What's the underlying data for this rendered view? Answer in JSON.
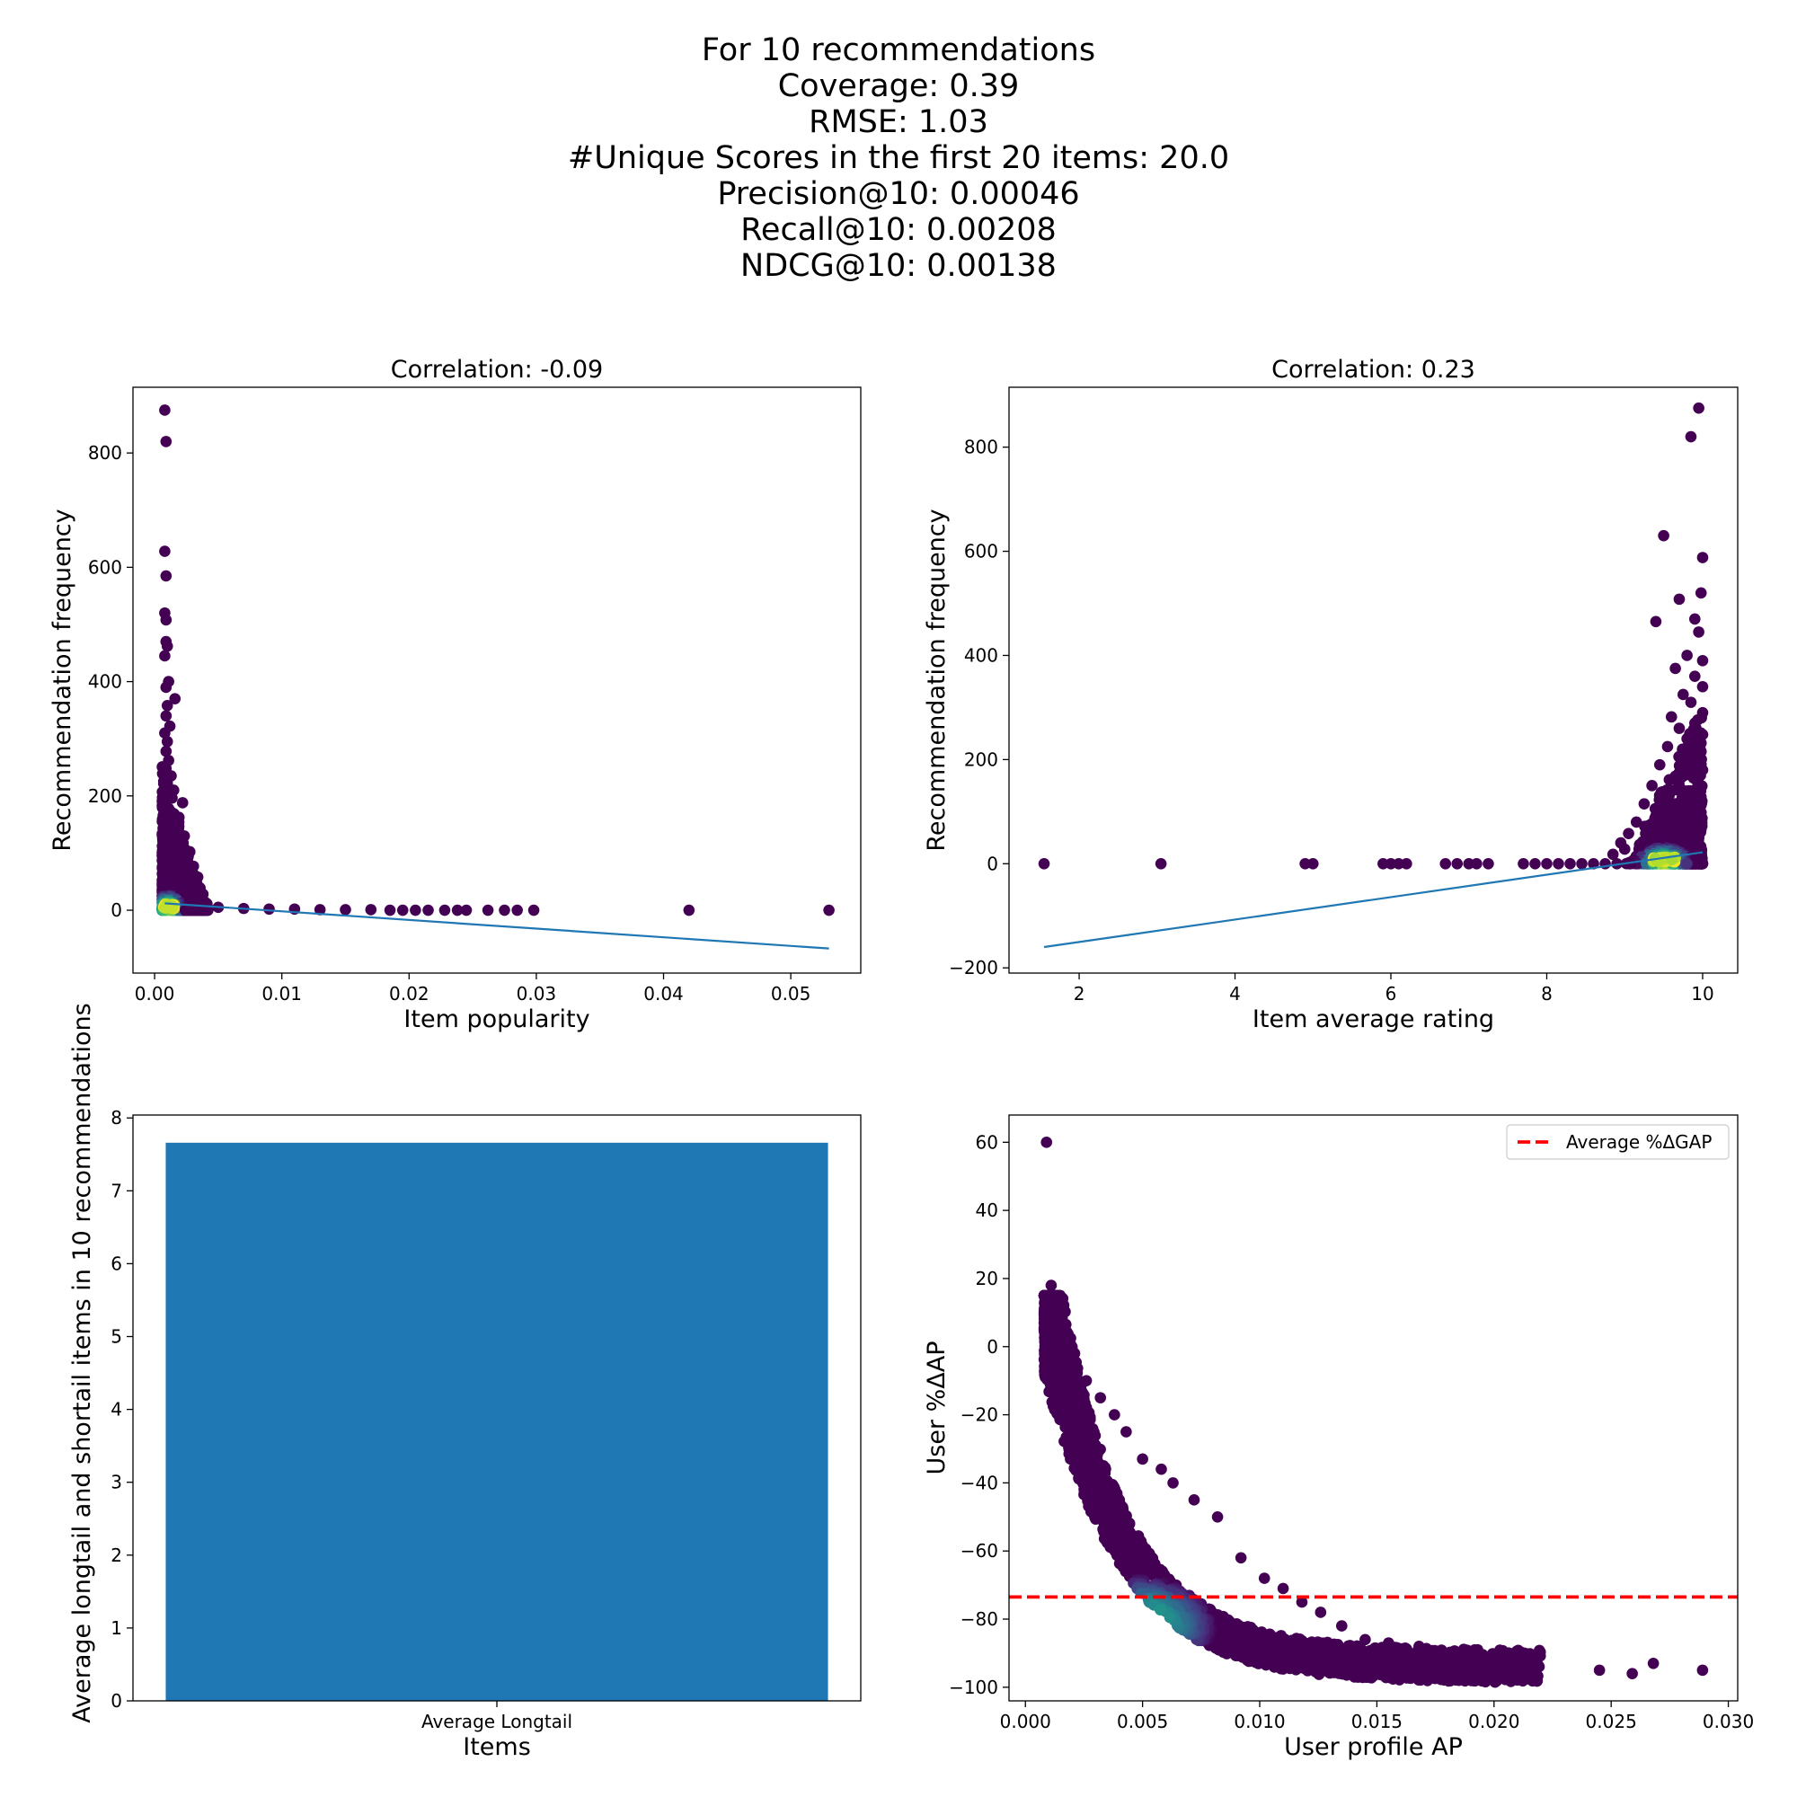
{
  "suptitle": [
    "For 10 recommendations",
    "Coverage: 0.39",
    "RMSE: 1.03",
    "#Unique Scores in the first 20 items: 20.0",
    "Precision@10: 0.00046",
    "Recall@10: 0.00208",
    "NDCG@10: 0.00138"
  ],
  "colors": {
    "viridis_low": "#440154",
    "viridis_mid": "#21918c",
    "viridis_high": "#fde725",
    "fit_line": "#1f77b4",
    "bar": "#1f77b4",
    "avg_line": "#ff0000"
  },
  "chart_data": [
    {
      "type": "scatter",
      "title": "Correlation: -0.09",
      "xlabel": "Item popularity",
      "ylabel": "Recommendation frequency",
      "xlim": [
        -0.0017,
        0.0555
      ],
      "ylim": [
        -110,
        915
      ],
      "xticks": [
        0.0,
        0.01,
        0.02,
        0.03,
        0.04,
        0.05
      ],
      "xticklabels": [
        "0.00",
        "0.01",
        "0.02",
        "0.03",
        "0.04",
        "0.05"
      ],
      "yticks": [
        0,
        200,
        400,
        600,
        800
      ],
      "yticklabels": [
        "0",
        "200",
        "400",
        "600",
        "800"
      ],
      "points": [
        [
          0.0008,
          875
        ],
        [
          0.0009,
          820
        ],
        [
          0.0008,
          628
        ],
        [
          0.0009,
          585
        ],
        [
          0.0008,
          520
        ],
        [
          0.0009,
          508
        ],
        [
          0.0009,
          470
        ],
        [
          0.001,
          462
        ],
        [
          0.0008,
          445
        ],
        [
          0.0011,
          400
        ],
        [
          0.0009,
          390
        ],
        [
          0.0016,
          370
        ],
        [
          0.001,
          358
        ],
        [
          0.0009,
          340
        ],
        [
          0.0012,
          322
        ],
        [
          0.0008,
          310
        ],
        [
          0.001,
          295
        ],
        [
          0.0009,
          278
        ],
        [
          0.0011,
          262
        ],
        [
          0.0009,
          248
        ],
        [
          0.0013,
          235
        ],
        [
          0.001,
          222
        ],
        [
          0.0015,
          210
        ],
        [
          0.0012,
          198
        ],
        [
          0.0022,
          188
        ],
        [
          0.0011,
          178
        ],
        [
          0.0014,
          165
        ],
        [
          0.001,
          152
        ],
        [
          0.0018,
          140
        ],
        [
          0.0012,
          128
        ],
        [
          0.0016,
          118
        ],
        [
          0.0013,
          108
        ],
        [
          0.0019,
          100
        ],
        [
          0.0021,
          95
        ],
        [
          0.0011,
          90
        ],
        [
          0.0025,
          85
        ],
        [
          0.0024,
          78
        ],
        [
          0.0028,
          72
        ],
        [
          0.0015,
          68
        ],
        [
          0.0031,
          62
        ],
        [
          0.0026,
          55
        ],
        [
          0.0033,
          48
        ],
        [
          0.0035,
          40
        ],
        [
          0.0028,
          35
        ],
        [
          0.0038,
          28
        ],
        [
          0.0032,
          22
        ],
        [
          0.0036,
          15
        ],
        [
          0.005,
          5
        ],
        [
          0.007,
          3
        ],
        [
          0.009,
          2
        ],
        [
          0.011,
          2
        ],
        [
          0.013,
          1
        ],
        [
          0.015,
          1
        ],
        [
          0.017,
          1
        ],
        [
          0.0185,
          0
        ],
        [
          0.0195,
          0
        ],
        [
          0.0205,
          0
        ],
        [
          0.0215,
          0
        ],
        [
          0.0228,
          0
        ],
        [
          0.0238,
          0
        ],
        [
          0.0245,
          0
        ],
        [
          0.0262,
          0
        ],
        [
          0.0275,
          0
        ],
        [
          0.0285,
          0
        ],
        [
          0.0298,
          0
        ],
        [
          0.042,
          0
        ],
        [
          0.053,
          0
        ]
      ],
      "dense_region": {
        "x": [
          0.0006,
          0.0042
        ],
        "y": [
          0,
          260
        ],
        "peak": [
          0.0011,
          3
        ]
      },
      "fit_line": [
        [
          0.0008,
          12
        ],
        [
          0.053,
          -67
        ]
      ]
    },
    {
      "type": "scatter",
      "title": "Correlation: 0.23",
      "xlabel": "Item average rating",
      "ylabel": "Recommendation frequency",
      "xlim": [
        1.1,
        10.45
      ],
      "ylim": [
        -210,
        915
      ],
      "xticks": [
        2,
        4,
        6,
        8,
        10
      ],
      "xticklabels": [
        "2",
        "4",
        "6",
        "8",
        "10"
      ],
      "yticks": [
        -200,
        0,
        200,
        400,
        600,
        800
      ],
      "yticklabels": [
        "−200",
        "0",
        "200",
        "400",
        "600",
        "800"
      ],
      "points": [
        [
          1.55,
          0
        ],
        [
          3.05,
          0
        ],
        [
          4.9,
          0
        ],
        [
          5.0,
          0
        ],
        [
          5.9,
          0
        ],
        [
          6.0,
          0
        ],
        [
          6.1,
          0
        ],
        [
          6.2,
          0
        ],
        [
          6.7,
          0
        ],
        [
          6.85,
          0
        ],
        [
          7.0,
          0
        ],
        [
          7.1,
          0
        ],
        [
          7.25,
          0
        ],
        [
          7.7,
          0
        ],
        [
          7.85,
          0
        ],
        [
          8.0,
          0
        ],
        [
          8.15,
          0
        ],
        [
          8.3,
          0
        ],
        [
          8.45,
          0
        ],
        [
          8.6,
          0
        ],
        [
          8.75,
          0
        ],
        [
          8.9,
          0
        ],
        [
          9.95,
          875
        ],
        [
          9.85,
          820
        ],
        [
          9.5,
          630
        ],
        [
          10.0,
          588
        ],
        [
          9.98,
          520
        ],
        [
          9.7,
          508
        ],
        [
          9.9,
          470
        ],
        [
          9.4,
          465
        ],
        [
          9.95,
          445
        ],
        [
          9.8,
          400
        ],
        [
          10.0,
          390
        ],
        [
          9.65,
          375
        ],
        [
          9.9,
          360
        ],
        [
          10.0,
          340
        ],
        [
          9.75,
          325
        ],
        [
          9.85,
          310
        ],
        [
          10.0,
          290
        ],
        [
          9.6,
          282
        ],
        [
          9.9,
          270
        ],
        [
          9.7,
          260
        ],
        [
          10.0,
          248
        ],
        [
          9.8,
          240
        ],
        [
          9.55,
          225
        ],
        [
          9.95,
          210
        ],
        [
          9.9,
          198
        ],
        [
          9.45,
          190
        ],
        [
          10.0,
          180
        ],
        [
          9.65,
          168
        ],
        [
          9.35,
          150
        ],
        [
          9.85,
          140
        ],
        [
          9.5,
          128
        ],
        [
          9.25,
          115
        ],
        [
          9.75,
          100
        ],
        [
          9.4,
          92
        ],
        [
          9.15,
          80
        ],
        [
          9.6,
          72
        ],
        [
          9.05,
          58
        ],
        [
          9.3,
          48
        ],
        [
          8.95,
          40
        ],
        [
          9.7,
          62
        ],
        [
          9.2,
          35
        ],
        [
          9.0,
          28
        ],
        [
          8.85,
          18
        ]
      ],
      "dense_region": {
        "x": [
          9.0,
          10.0
        ],
        "y": [
          0,
          300
        ],
        "peak": [
          9.5,
          3
        ]
      },
      "fit_line": [
        [
          1.55,
          -160
        ],
        [
          10.0,
          22
        ]
      ]
    },
    {
      "type": "bar",
      "title": "",
      "xlabel": "Items",
      "ylabel": "Average longtail and shortail items in 10 recommendations",
      "categories": [
        "Average Longtail"
      ],
      "values": [
        7.66
      ],
      "ylim": [
        0,
        8.04
      ],
      "yticks": [
        0,
        1,
        2,
        3,
        4,
        5,
        6,
        7,
        8
      ],
      "yticklabels": [
        "0",
        "1",
        "2",
        "3",
        "4",
        "5",
        "6",
        "7",
        "8"
      ]
    },
    {
      "type": "scatter",
      "title": "",
      "xlabel": "User profile AP",
      "ylabel": "User %ΔAP",
      "xlim": [
        -0.0007,
        0.0304
      ],
      "ylim": [
        -104,
        68
      ],
      "xticks": [
        0.0,
        0.005,
        0.01,
        0.015,
        0.02,
        0.025,
        0.03
      ],
      "xticklabels": [
        "0.000",
        "0.005",
        "0.010",
        "0.015",
        "0.020",
        "0.025",
        "0.030"
      ],
      "yticks": [
        -100,
        -80,
        -60,
        -40,
        -20,
        0,
        20,
        40,
        60
      ],
      "yticklabels": [
        "−100",
        "−80",
        "−60",
        "−40",
        "−20",
        "0",
        "20",
        "40",
        "60"
      ],
      "legend": {
        "label": "Average %ΔGAP",
        "loc": "upper right"
      },
      "avg_line_y": -73.5,
      "points": [
        [
          0.0009,
          60
        ],
        [
          0.0011,
          18
        ],
        [
          0.0013,
          13
        ],
        [
          0.0008,
          5
        ],
        [
          0.0015,
          10
        ],
        [
          0.0012,
          0
        ],
        [
          0.0018,
          1
        ],
        [
          0.0009,
          -5
        ],
        [
          0.0021,
          -2
        ],
        [
          0.0014,
          -12
        ],
        [
          0.0026,
          -10
        ],
        [
          0.0032,
          -15
        ],
        [
          0.0038,
          -20
        ],
        [
          0.0043,
          -25
        ],
        [
          0.005,
          -33
        ],
        [
          0.0058,
          -36
        ],
        [
          0.0063,
          -40
        ],
        [
          0.0072,
          -45
        ],
        [
          0.0082,
          -50
        ],
        [
          0.0092,
          -62
        ],
        [
          0.0102,
          -68
        ],
        [
          0.011,
          -71
        ],
        [
          0.0118,
          -75
        ],
        [
          0.0126,
          -78
        ],
        [
          0.0135,
          -82
        ],
        [
          0.0145,
          -86
        ],
        [
          0.0155,
          -87
        ],
        [
          0.016,
          -89
        ],
        [
          0.0168,
          -88
        ],
        [
          0.0172,
          -91
        ],
        [
          0.0178,
          -94
        ],
        [
          0.0185,
          -93
        ],
        [
          0.0193,
          -89
        ],
        [
          0.0198,
          -95
        ],
        [
          0.0203,
          -94
        ],
        [
          0.0209,
          -92
        ],
        [
          0.0213,
          -90
        ],
        [
          0.0217,
          -96
        ],
        [
          0.0245,
          -95
        ],
        [
          0.0259,
          -96
        ],
        [
          0.0268,
          -93
        ],
        [
          0.0289,
          -95
        ]
      ],
      "dense_curve": {
        "a": -112,
        "b": 28,
        "min_x": 0.0008,
        "max_x": 0.022
      }
    }
  ]
}
